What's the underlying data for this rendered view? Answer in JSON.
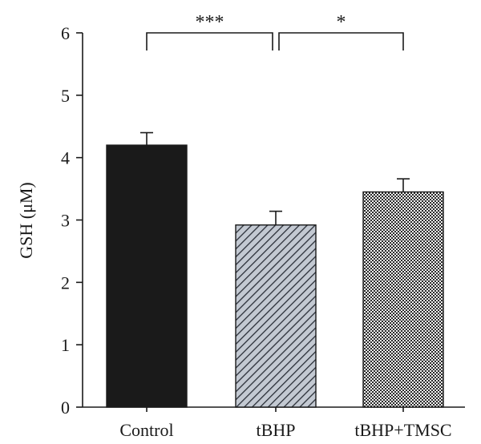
{
  "chart_data": {
    "type": "bar",
    "title": "",
    "xlabel": "",
    "ylabel": "GSH (μM)",
    "ylim": [
      0,
      6
    ],
    "yticks": [
      0,
      1,
      2,
      3,
      4,
      5,
      6
    ],
    "grid": false,
    "legend": "none",
    "categories": [
      "Control",
      "tBHP",
      "tBHP+TMSC"
    ],
    "values": [
      4.2,
      2.92,
      3.45
    ],
    "errors": [
      0.2,
      0.22,
      0.21
    ],
    "bar_styles": [
      {
        "pattern": "solid",
        "color": "#1a1a1a"
      },
      {
        "pattern": "diagonal-stripes",
        "color": "#9aa3b0"
      },
      {
        "pattern": "crosshatch",
        "color": "#7a7a7a"
      }
    ],
    "significance": [
      {
        "from": 0,
        "to": 1,
        "label": "***"
      },
      {
        "from": 1,
        "to": 2,
        "label": "*"
      }
    ]
  }
}
